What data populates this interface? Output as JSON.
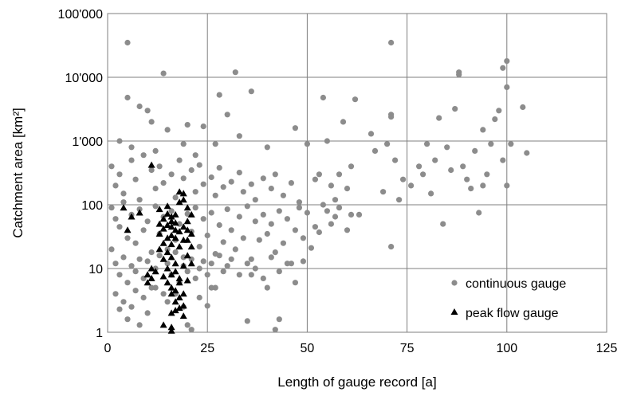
{
  "chart_data": {
    "type": "scatter",
    "xlabel": "Length of gauge record [a]",
    "ylabel": "Catchment area [km²]",
    "xlim": [
      0,
      125
    ],
    "ylim": [
      1,
      100000
    ],
    "yscale": "log",
    "grid": true,
    "legend_position": "bottom-right",
    "x_ticks": [
      "0",
      "25",
      "50",
      "75",
      "100",
      "125"
    ],
    "y_ticks": [
      "1",
      "10",
      "100",
      "1'000",
      "10'000",
      "100'000"
    ],
    "colors": {
      "continuous": "#8c8c8c",
      "peak": "#000000",
      "grid": "#7f7f7f"
    },
    "series": [
      {
        "name": "continuous gauge",
        "marker": "circle",
        "points": [
          [
            5,
            35000
          ],
          [
            71,
            35000
          ],
          [
            14,
            11500
          ],
          [
            32,
            12000
          ],
          [
            88,
            12000
          ],
          [
            100,
            18000
          ],
          [
            88,
            11000
          ],
          [
            99,
            14000
          ],
          [
            5,
            4800
          ],
          [
            28,
            5300
          ],
          [
            54,
            4800
          ],
          [
            62,
            4500
          ],
          [
            71,
            2600
          ],
          [
            71,
            2400
          ],
          [
            100,
            7000
          ],
          [
            97,
            2200
          ],
          [
            98,
            3000
          ],
          [
            8,
            3500
          ],
          [
            10,
            3000
          ],
          [
            11,
            2000
          ],
          [
            15,
            1500
          ],
          [
            20,
            1800
          ],
          [
            36,
            6000
          ],
          [
            30,
            2600
          ],
          [
            47,
            1600
          ],
          [
            55,
            1000
          ],
          [
            59,
            2000
          ],
          [
            66,
            1300
          ],
          [
            70,
            900
          ],
          [
            83,
            2300
          ],
          [
            87,
            3200
          ],
          [
            94,
            1500
          ],
          [
            101,
            900
          ],
          [
            104,
            3400
          ],
          [
            105,
            650
          ],
          [
            3,
            1000
          ],
          [
            6,
            800
          ],
          [
            12,
            700
          ],
          [
            19,
            900
          ],
          [
            22,
            600
          ],
          [
            24,
            1700
          ],
          [
            27,
            900
          ],
          [
            33,
            1200
          ],
          [
            40,
            800
          ],
          [
            50,
            900
          ],
          [
            58,
            300
          ],
          [
            61,
            400
          ],
          [
            67,
            700
          ],
          [
            72,
            500
          ],
          [
            80,
            900
          ],
          [
            85,
            800
          ],
          [
            89,
            400
          ],
          [
            92,
            700
          ],
          [
            96,
            900
          ],
          [
            100,
            200
          ],
          [
            99,
            500
          ],
          [
            95,
            300
          ],
          [
            1,
            400
          ],
          [
            2,
            200
          ],
          [
            3,
            300
          ],
          [
            4,
            150
          ],
          [
            6,
            500
          ],
          [
            7,
            250
          ],
          [
            8,
            120
          ],
          [
            9,
            600
          ],
          [
            11,
            350
          ],
          [
            12,
            180
          ],
          [
            13,
            400
          ],
          [
            14,
            220
          ],
          [
            16,
            300
          ],
          [
            17,
            130
          ],
          [
            18,
            500
          ],
          [
            19,
            260
          ],
          [
            21,
            350
          ],
          [
            22,
            160
          ],
          [
            23,
            420
          ],
          [
            24,
            210
          ],
          [
            26,
            270
          ],
          [
            27,
            140
          ],
          [
            28,
            380
          ],
          [
            29,
            190
          ],
          [
            31,
            230
          ],
          [
            33,
            320
          ],
          [
            34,
            160
          ],
          [
            36,
            210
          ],
          [
            37,
            120
          ],
          [
            39,
            260
          ],
          [
            41,
            180
          ],
          [
            42,
            300
          ],
          [
            44,
            140
          ],
          [
            46,
            220
          ],
          [
            48,
            110
          ],
          [
            52,
            250
          ],
          [
            53,
            300
          ],
          [
            56,
            200
          ],
          [
            57,
            120
          ],
          [
            60,
            180
          ],
          [
            63,
            70
          ],
          [
            69,
            160
          ],
          [
            71,
            22
          ],
          [
            73,
            120
          ],
          [
            74,
            250
          ],
          [
            76,
            200
          ],
          [
            78,
            400
          ],
          [
            79,
            300
          ],
          [
            81,
            150
          ],
          [
            82,
            500
          ],
          [
            84,
            50
          ],
          [
            86,
            350
          ],
          [
            90,
            250
          ],
          [
            91,
            180
          ],
          [
            93,
            75
          ],
          [
            94,
            200
          ],
          [
            1,
            90
          ],
          [
            2,
            60
          ],
          [
            3,
            45
          ],
          [
            4,
            110
          ],
          [
            5,
            30
          ],
          [
            6,
            70
          ],
          [
            7,
            25
          ],
          [
            8,
            85
          ],
          [
            9,
            40
          ],
          [
            10,
            55
          ],
          [
            11,
            18
          ],
          [
            12,
            95
          ],
          [
            13,
            35
          ],
          [
            14,
            65
          ],
          [
            15,
            20
          ],
          [
            16,
            80
          ],
          [
            17,
            28
          ],
          [
            18,
            50
          ],
          [
            19,
            15
          ],
          [
            20,
            72
          ],
          [
            21,
            38
          ],
          [
            22,
            90
          ],
          [
            23,
            22
          ],
          [
            24,
            60
          ],
          [
            25,
            33
          ],
          [
            26,
            75
          ],
          [
            27,
            17
          ],
          [
            28,
            48
          ],
          [
            29,
            26
          ],
          [
            30,
            85
          ],
          [
            31,
            40
          ],
          [
            32,
            20
          ],
          [
            33,
            65
          ],
          [
            34,
            30
          ],
          [
            35,
            95
          ],
          [
            36,
            14
          ],
          [
            37,
            55
          ],
          [
            38,
            28
          ],
          [
            39,
            70
          ],
          [
            40,
            35
          ],
          [
            41,
            50
          ],
          [
            42,
            18
          ],
          [
            43,
            80
          ],
          [
            44,
            25
          ],
          [
            45,
            60
          ],
          [
            46,
            12
          ],
          [
            47,
            40
          ],
          [
            48,
            90
          ],
          [
            49,
            30
          ],
          [
            50,
            75
          ],
          [
            51,
            21
          ],
          [
            52,
            45
          ],
          [
            53,
            37
          ],
          [
            54,
            100
          ],
          [
            55,
            80
          ],
          [
            56,
            50
          ],
          [
            57,
            65
          ],
          [
            58,
            90
          ],
          [
            60,
            40
          ],
          [
            61,
            70
          ],
          [
            1,
            20
          ],
          [
            2,
            12
          ],
          [
            3,
            8
          ],
          [
            4,
            15
          ],
          [
            5,
            6
          ],
          [
            6,
            11
          ],
          [
            7,
            9
          ],
          [
            8,
            14
          ],
          [
            9,
            7
          ],
          [
            10,
            13
          ],
          [
            11,
            5
          ],
          [
            12,
            10
          ],
          [
            13,
            16
          ],
          [
            14,
            4
          ],
          [
            15,
            12
          ],
          [
            16,
            8
          ],
          [
            17,
            18
          ],
          [
            18,
            6
          ],
          [
            19,
            11
          ],
          [
            20,
            9
          ],
          [
            21,
            14
          ],
          [
            22,
            7
          ],
          [
            23,
            10
          ],
          [
            24,
            13
          ],
          [
            25,
            8
          ],
          [
            26,
            12
          ],
          [
            27,
            5
          ],
          [
            28,
            16
          ],
          [
            29,
            9
          ],
          [
            30,
            11
          ],
          [
            31,
            14
          ],
          [
            33,
            8
          ],
          [
            35,
            12
          ],
          [
            37,
            10
          ],
          [
            39,
            7
          ],
          [
            41,
            15
          ],
          [
            43,
            9
          ],
          [
            45,
            12
          ],
          [
            47,
            6
          ],
          [
            49,
            13
          ],
          [
            2,
            4
          ],
          [
            3,
            2.3
          ],
          [
            4,
            3
          ],
          [
            5,
            1.6
          ],
          [
            6,
            2.5
          ],
          [
            7,
            4.5
          ],
          [
            8,
            1.3
          ],
          [
            9,
            3.5
          ],
          [
            10,
            2
          ],
          [
            12,
            5
          ],
          [
            15,
            3
          ],
          [
            17,
            4
          ],
          [
            19,
            2.5
          ],
          [
            20,
            1.3
          ],
          [
            21,
            1.1
          ],
          [
            23,
            3.5
          ],
          [
            25,
            2.6
          ],
          [
            26,
            5
          ],
          [
            35,
            1.5
          ],
          [
            42,
            1.1
          ],
          [
            43,
            1.6
          ],
          [
            36,
            8
          ],
          [
            40,
            5
          ]
        ]
      },
      {
        "name": "peak flow gauge",
        "marker": "triangle",
        "points": [
          [
            11,
            420
          ],
          [
            4,
            90
          ],
          [
            8,
            75
          ],
          [
            5,
            40
          ],
          [
            6,
            65
          ],
          [
            13,
            85
          ],
          [
            14,
            60
          ],
          [
            15,
            95
          ],
          [
            16,
            45
          ],
          [
            17,
            30
          ],
          [
            18,
            160
          ],
          [
            19,
            120
          ],
          [
            20,
            90
          ],
          [
            21,
            70
          ],
          [
            20,
            40
          ],
          [
            13,
            35
          ],
          [
            14,
            25
          ],
          [
            15,
            18
          ],
          [
            16,
            15
          ],
          [
            17,
            12
          ],
          [
            18,
            22
          ],
          [
            19,
            28
          ],
          [
            20,
            55
          ],
          [
            21,
            35
          ],
          [
            17,
            70
          ],
          [
            13,
            20
          ],
          [
            14,
            14
          ],
          [
            15,
            10
          ],
          [
            16,
            8
          ],
          [
            17,
            9
          ],
          [
            18,
            7
          ],
          [
            19,
            11
          ],
          [
            20,
            16
          ],
          [
            21,
            12
          ],
          [
            16,
            24
          ],
          [
            10,
            8
          ],
          [
            11,
            7
          ],
          [
            12,
            9
          ],
          [
            10,
            6
          ],
          [
            11,
            10
          ],
          [
            14,
            7.5
          ],
          [
            15,
            6
          ],
          [
            16,
            5
          ],
          [
            17,
            4.5
          ],
          [
            18,
            6
          ],
          [
            19,
            4
          ],
          [
            20,
            6.5
          ],
          [
            16,
            4
          ],
          [
            17,
            3
          ],
          [
            18,
            3.5
          ],
          [
            19,
            2.6
          ],
          [
            17,
            2.2
          ],
          [
            18,
            2.4
          ],
          [
            19,
            1.8
          ],
          [
            16,
            2
          ],
          [
            14,
            1.3
          ],
          [
            16,
            1.2
          ],
          [
            16,
            1.05
          ],
          [
            15,
            48
          ],
          [
            16,
            33
          ],
          [
            17,
            52
          ],
          [
            18,
            38
          ],
          [
            19,
            45
          ],
          [
            20,
            28
          ],
          [
            21,
            22
          ],
          [
            13,
            50
          ],
          [
            14,
            42
          ],
          [
            15,
            30
          ],
          [
            16,
            65
          ],
          [
            18,
            110
          ],
          [
            19,
            150
          ],
          [
            17,
            40
          ],
          [
            15,
            72
          ],
          [
            16,
            55
          ]
        ]
      }
    ]
  }
}
